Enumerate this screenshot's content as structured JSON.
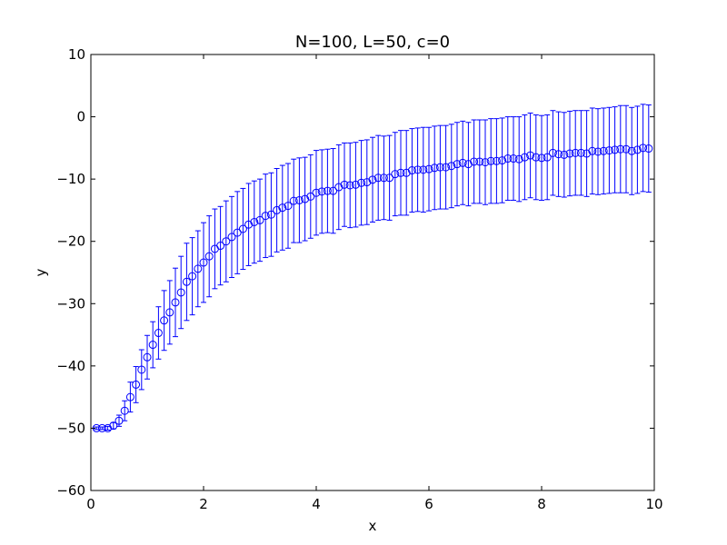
{
  "chart_data": {
    "type": "scatter",
    "title": "N=100, L=50, c=0",
    "xlabel": "x",
    "ylabel": "y",
    "xlim": [
      0,
      10
    ],
    "ylim": [
      -60,
      10
    ],
    "xticks": [
      "0",
      "2",
      "4",
      "6",
      "8",
      "10"
    ],
    "yticks": [
      "10",
      "0",
      "−10",
      "−20",
      "−30",
      "−40",
      "−50",
      "−60"
    ],
    "grid": false,
    "legend": "none",
    "marker": "open-circle",
    "color": "#0000ff",
    "series": [
      {
        "x": [
          0.1,
          0.2,
          0.3,
          0.4,
          0.5,
          0.6,
          0.7,
          0.8,
          0.9,
          1.0,
          1.1,
          1.2,
          1.3,
          1.4,
          1.5,
          1.6,
          1.7,
          1.8,
          1.9,
          2.0,
          2.1,
          2.2,
          2.3,
          2.4,
          2.5,
          2.6,
          2.7,
          2.8,
          2.9,
          3.0,
          3.1,
          3.2,
          3.3,
          3.4,
          3.5,
          3.6,
          3.7,
          3.8,
          3.9,
          4.0,
          4.1,
          4.2,
          4.3,
          4.4,
          4.5,
          4.6,
          4.7,
          4.8,
          4.9,
          5.0,
          5.1,
          5.2,
          5.3,
          5.4,
          5.5,
          5.6,
          5.7,
          5.8,
          5.9,
          6.0,
          6.1,
          6.2,
          6.3,
          6.4,
          6.5,
          6.6,
          6.7,
          6.8,
          6.9,
          7.0,
          7.1,
          7.2,
          7.3,
          7.4,
          7.5,
          7.6,
          7.7,
          7.8,
          7.9,
          8.0,
          8.1,
          8.2,
          8.3,
          8.4,
          8.5,
          8.6,
          8.7,
          8.8,
          8.9,
          9.0,
          9.1,
          9.2,
          9.3,
          9.4,
          9.5,
          9.6,
          9.7,
          9.8,
          9.9
        ],
        "y": [
          -50,
          -50,
          -50,
          -49.6,
          -48.8,
          -47.2,
          -45,
          -43,
          -40.6,
          -38.6,
          -36.6,
          -34.7,
          -32.7,
          -31.4,
          -29.8,
          -28.2,
          -26.5,
          -25.6,
          -24.4,
          -23.4,
          -22.4,
          -21.2,
          -20.7,
          -20,
          -19.3,
          -18.6,
          -18,
          -17.3,
          -16.9,
          -16.6,
          -15.9,
          -15.7,
          -15,
          -14.6,
          -14.3,
          -13.5,
          -13.4,
          -13.2,
          -12.8,
          -12.2,
          -12,
          -11.9,
          -11.9,
          -11.3,
          -10.9,
          -11,
          -10.9,
          -10.6,
          -10.5,
          -10.1,
          -9.8,
          -9.8,
          -9.8,
          -9.2,
          -9,
          -9,
          -8.6,
          -8.5,
          -8.5,
          -8.4,
          -8.2,
          -8.1,
          -8.1,
          -7.9,
          -7.6,
          -7.4,
          -7.6,
          -7.2,
          -7.2,
          -7.3,
          -7.1,
          -7.1,
          -7,
          -6.7,
          -6.7,
          -6.8,
          -6.5,
          -6.2,
          -6.5,
          -6.6,
          -6.5,
          -5.8,
          -6,
          -6.1,
          -5.9,
          -5.8,
          -5.8,
          -5.9,
          -5.5,
          -5.6,
          -5.5,
          -5.4,
          -5.3,
          -5.2,
          -5.2,
          -5.5,
          -5.3,
          -5,
          -5.1
        ],
        "err": [
          0.2,
          0.2,
          0.3,
          0.5,
          0.9,
          1.6,
          2.4,
          2.9,
          3.2,
          3.5,
          3.7,
          4.2,
          4.8,
          5.1,
          5.5,
          5.8,
          6.2,
          6.2,
          6.1,
          6.4,
          6.5,
          6.4,
          6.3,
          6.5,
          6.5,
          6.6,
          6.5,
          6.6,
          6.6,
          6.6,
          6.7,
          6.7,
          6.7,
          6.8,
          6.8,
          6.7,
          6.8,
          6.7,
          6.7,
          6.8,
          6.7,
          6.7,
          6.8,
          6.8,
          6.7,
          6.8,
          6.8,
          6.8,
          6.8,
          6.8,
          6.8,
          6.7,
          6.8,
          6.7,
          6.8,
          6.8,
          6.7,
          6.7,
          6.8,
          6.7,
          6.7,
          6.7,
          6.7,
          6.7,
          6.7,
          6.7,
          6.7,
          6.7,
          6.7,
          6.8,
          6.8,
          6.8,
          6.8,
          6.7,
          6.7,
          6.8,
          6.8,
          6.8,
          6.8,
          6.8,
          6.8,
          6.8,
          6.8,
          6.8,
          6.8,
          6.8,
          6.8,
          6.9,
          6.9,
          6.9,
          6.9,
          6.9,
          6.9,
          7.0,
          7.0,
          7.0,
          7.0,
          7.0,
          7.0
        ]
      }
    ]
  }
}
